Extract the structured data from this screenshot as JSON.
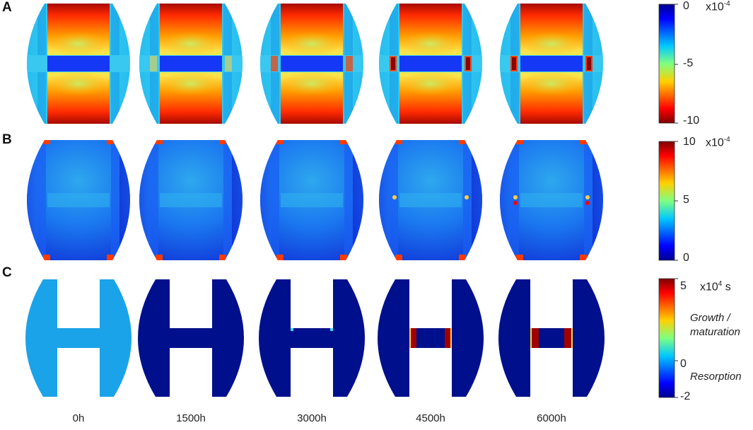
{
  "rows": [
    {
      "label": "A",
      "colormap": [
        "#7f0000",
        "#ff0000",
        "#ffd000",
        "#7fff80",
        "#00c8ff",
        "#0000ff",
        "#00008f"
      ],
      "scale_top": "0",
      "scale_mid": "-5",
      "scale_bottom": "-10",
      "scale_unit": "x10-4"
    },
    {
      "label": "B",
      "colormap": [
        "#7f0000",
        "#ff0000",
        "#ffd000",
        "#7fff80",
        "#00c8ff",
        "#0000ff",
        "#00008f"
      ],
      "scale_top": "10",
      "scale_mid": "5",
      "scale_bottom": "0",
      "scale_unit": "x10-4"
    },
    {
      "label": "C",
      "colormap": [
        "#7f0000",
        "#ff0000",
        "#ffd000",
        "#7fff80",
        "#00c8ff",
        "#0000ff",
        "#00008f"
      ],
      "scale_top": "5",
      "scale_mid": "0",
      "scale_bottom": "-2",
      "scale_unit_base": "x10",
      "scale_unit_exp": "4",
      "scale_unit_suffix": " s",
      "note_upper": "Growth /\nmaturation",
      "note_lower": "Resorption"
    }
  ],
  "columns": [
    "0h",
    "1500h",
    "3000h",
    "4500h",
    "6000h"
  ],
  "colors": {
    "dark_red": "#8b0000",
    "red": "#ff2a00",
    "yellow": "#ffd23f",
    "cyan": "#21c4e8",
    "light_blue": "#1aa3e8",
    "blue": "#1f4fff",
    "navy": "#000a8c"
  }
}
